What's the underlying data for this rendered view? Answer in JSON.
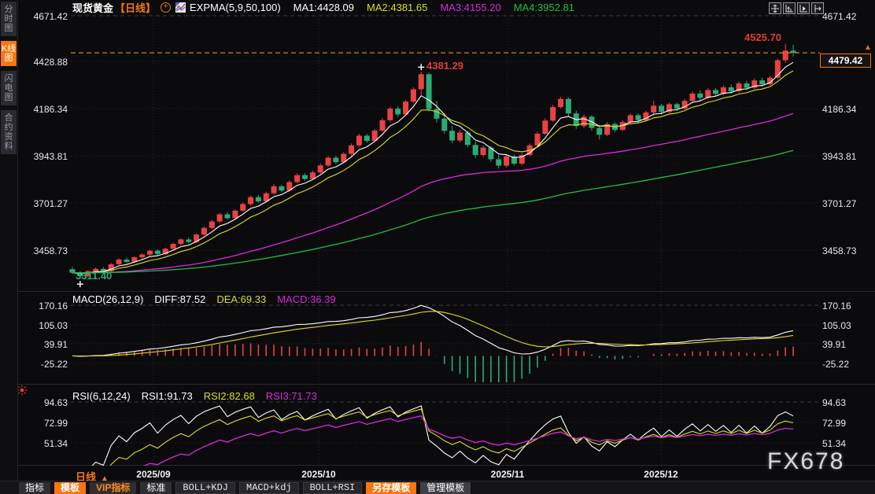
{
  "colors": {
    "accent": "#f5770f",
    "up": "#ea4242",
    "down": "#2cab74",
    "ma1": "#ffffff",
    "ma2": "#dede21",
    "ma3": "#d92bd9",
    "ma4": "#1fbf45",
    "label_red": "#e23b3b",
    "axis_text": "#e8e8e8",
    "price_line": "#f5a623"
  },
  "sidebar": {
    "tabs": [
      {
        "label": "分时图",
        "active": false
      },
      {
        "label": "K线图",
        "active": true
      },
      {
        "label": "闪电图",
        "active": false
      },
      {
        "label": "合约资料",
        "active": false
      }
    ]
  },
  "header": {
    "symbol": "现货黄金",
    "period": "【日线】",
    "plus_icon": "+",
    "indicator": "EXPMA(5,9,50,100)",
    "ma1": "MA1:4428.09",
    "ma2": "MA2:4381.65",
    "ma3": "MA3:4155.20",
    "ma4": "MA4:3952.81"
  },
  "macd": {
    "header": "MACD(26,12,9)",
    "diff": "DIFF:87.52",
    "dea": "DEA:69.33",
    "macd": "MACD:36.39"
  },
  "rsi": {
    "header": "RSI(6,12,24)",
    "rsi1": "RSI1:91.73",
    "rsi2": "RSI2:82.68",
    "rsi3": "RSI3:71.73"
  },
  "annotations": {
    "peak_label": "4381.29",
    "high_label": "4525.70",
    "low_label": "3311.40",
    "last_price": "4479.42",
    "arrow": "▲"
  },
  "xaxis": {
    "period_label": "日线",
    "arrow": "▲"
  },
  "footer": {
    "buttons": [
      {
        "label": "指标",
        "variant": "plain"
      },
      {
        "label": "模板",
        "variant": "active"
      },
      {
        "label": "VIP指标",
        "variant": "vip"
      },
      {
        "label": "标准",
        "variant": "plain"
      },
      {
        "label": "BOLL+KDJ",
        "variant": "preset"
      },
      {
        "label": "MACD+kdj",
        "variant": "preset"
      },
      {
        "label": "BOLL+RSI",
        "variant": "preset"
      },
      {
        "label": "另存模板",
        "variant": "active"
      },
      {
        "label": "管理模板",
        "variant": "gray"
      }
    ]
  },
  "watermark": "FX678",
  "chart_data": {
    "type": "candlestick",
    "title": "现货黄金 日线 (spot gold daily)",
    "panes": [
      "price+EXPMA(5,9,50,100)",
      "MACD(26,12,9)",
      "RSI(6,12,24)"
    ],
    "price_axis_ticks": [
      "4671.42",
      "4428.88",
      "4186.34",
      "3943.81",
      "3701.27",
      "3458.73"
    ],
    "macd_axis_ticks": [
      "170.16",
      "105.03",
      "39.91",
      "-25.22"
    ],
    "rsi_axis_ticks": [
      "94.63",
      "72.99",
      "51.34"
    ],
    "x_tick_labels": [
      "2025/09",
      "2025/10",
      "2025/11",
      "2025/12"
    ],
    "expma_periods": [
      5,
      9,
      50,
      100
    ],
    "macd_params": [
      26,
      12,
      9
    ],
    "rsi_params": [
      6,
      12,
      24
    ],
    "markers": {
      "low": 3311.4,
      "low_index": 1,
      "peak": 4381.29,
      "peak_index": 45,
      "high": 4525.7,
      "high_index": 92,
      "last": 4479.42
    },
    "ohlc": [
      [
        3360,
        3372,
        3336,
        3342
      ],
      [
        3342,
        3350,
        3311.4,
        3324
      ],
      [
        3324,
        3356,
        3318,
        3350
      ],
      [
        3350,
        3369,
        3341,
        3362
      ],
      [
        3362,
        3371,
        3344,
        3351
      ],
      [
        3351,
        3392,
        3347,
        3386
      ],
      [
        3386,
        3418,
        3380,
        3410
      ],
      [
        3410,
        3420,
        3391,
        3398
      ],
      [
        3398,
        3428,
        3393,
        3422
      ],
      [
        3422,
        3442,
        3412,
        3436
      ],
      [
        3436,
        3462,
        3428,
        3456
      ],
      [
        3456,
        3463,
        3431,
        3439
      ],
      [
        3439,
        3472,
        3433,
        3466
      ],
      [
        3466,
        3497,
        3459,
        3491
      ],
      [
        3491,
        3521,
        3483,
        3514
      ],
      [
        3514,
        3524,
        3494,
        3501
      ],
      [
        3501,
        3546,
        3497,
        3539
      ],
      [
        3539,
        3581,
        3534,
        3574
      ],
      [
        3574,
        3616,
        3567,
        3607
      ],
      [
        3607,
        3651,
        3599,
        3644
      ],
      [
        3644,
        3654,
        3617,
        3624
      ],
      [
        3624,
        3671,
        3619,
        3663
      ],
      [
        3663,
        3706,
        3656,
        3697
      ],
      [
        3697,
        3741,
        3689,
        3733
      ],
      [
        3733,
        3744,
        3704,
        3711
      ],
      [
        3711,
        3761,
        3707,
        3753
      ],
      [
        3753,
        3801,
        3746,
        3789
      ],
      [
        3789,
        3797,
        3759,
        3767
      ],
      [
        3767,
        3821,
        3761,
        3811
      ],
      [
        3811,
        3856,
        3804,
        3847
      ],
      [
        3847,
        3857,
        3819,
        3827
      ],
      [
        3827,
        3871,
        3821,
        3861
      ],
      [
        3861,
        3906,
        3854,
        3897
      ],
      [
        3897,
        3946,
        3889,
        3937
      ],
      [
        3937,
        3947,
        3904,
        3914
      ],
      [
        3914,
        3966,
        3909,
        3957
      ],
      [
        3957,
        4011,
        3949,
        4001
      ],
      [
        4001,
        4061,
        3994,
        4051
      ],
      [
        4051,
        4061,
        4014,
        4024
      ],
      [
        4024,
        4086,
        4019,
        4077
      ],
      [
        4077,
        4141,
        4069,
        4131
      ],
      [
        4131,
        4201,
        4124,
        4191
      ],
      [
        4191,
        4204,
        4149,
        4161
      ],
      [
        4161,
        4236,
        4154,
        4227
      ],
      [
        4227,
        4301,
        4219,
        4291
      ],
      [
        4291,
        4381.29,
        4262,
        4369
      ],
      [
        4369,
        4377,
        4176,
        4189
      ],
      [
        4189,
        4231,
        4119,
        4139
      ],
      [
        4139,
        4156,
        4061,
        4076
      ],
      [
        4076,
        4101,
        4011,
        4026
      ],
      [
        4026,
        4081,
        4017,
        4067
      ],
      [
        4067,
        4076,
        3991,
        4003
      ],
      [
        4003,
        4021,
        3936,
        3951
      ],
      [
        3951,
        4001,
        3941,
        3989
      ],
      [
        3989,
        3997,
        3916,
        3929
      ],
      [
        3929,
        3951,
        3881,
        3896
      ],
      [
        3896,
        3956,
        3887,
        3944
      ],
      [
        3944,
        3953,
        3896,
        3906
      ],
      [
        3906,
        3961,
        3897,
        3951
      ],
      [
        3951,
        4011,
        3944,
        4001
      ],
      [
        4001,
        4071,
        3996,
        4061
      ],
      [
        4061,
        4141,
        4054,
        4129
      ],
      [
        4129,
        4211,
        4121,
        4199
      ],
      [
        4199,
        4251,
        4191,
        4241
      ],
      [
        4241,
        4249,
        4151,
        4166
      ],
      [
        4166,
        4181,
        4086,
        4101
      ],
      [
        4101,
        4161,
        4091,
        4149
      ],
      [
        4149,
        4157,
        4076,
        4091
      ],
      [
        4091,
        4106,
        4031,
        4056
      ],
      [
        4056,
        4121,
        4049,
        4111
      ],
      [
        4111,
        4119,
        4069,
        4081
      ],
      [
        4081,
        4131,
        4075,
        4121
      ],
      [
        4121,
        4166,
        4114,
        4157
      ],
      [
        4157,
        4166,
        4119,
        4131
      ],
      [
        4131,
        4181,
        4125,
        4171
      ],
      [
        4171,
        4231,
        4156,
        4206
      ],
      [
        4206,
        4216,
        4159,
        4174
      ],
      [
        4174,
        4223,
        4167,
        4214
      ],
      [
        4214,
        4221,
        4179,
        4191
      ],
      [
        4191,
        4241,
        4185,
        4231
      ],
      [
        4231,
        4279,
        4224,
        4269
      ],
      [
        4269,
        4286,
        4234,
        4247
      ],
      [
        4247,
        4296,
        4239,
        4287
      ],
      [
        4287,
        4297,
        4254,
        4267
      ],
      [
        4267,
        4311,
        4259,
        4301
      ],
      [
        4301,
        4316,
        4269,
        4281
      ],
      [
        4281,
        4331,
        4274,
        4321
      ],
      [
        4321,
        4336,
        4287,
        4299
      ],
      [
        4299,
        4346,
        4291,
        4337
      ],
      [
        4337,
        4351,
        4304,
        4317
      ],
      [
        4317,
        4361,
        4309,
        4351
      ],
      [
        4351,
        4449,
        4344,
        4441
      ],
      [
        4441,
        4525.7,
        4429,
        4491
      ],
      [
        4491,
        4521,
        4461,
        4479.42
      ]
    ]
  }
}
